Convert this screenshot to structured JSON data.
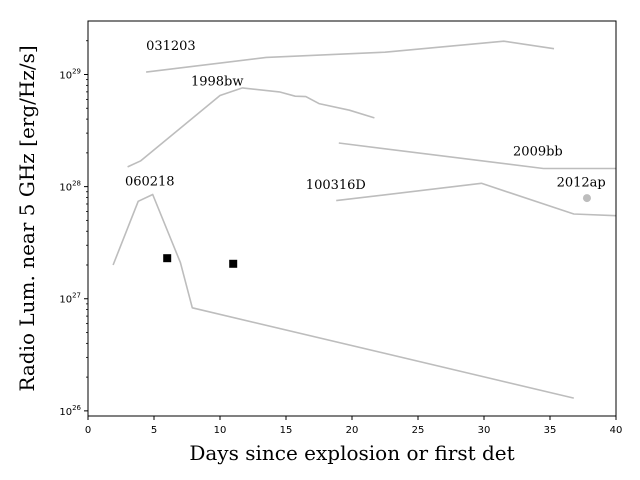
{
  "chart_data": {
    "type": "line",
    "xlabel": "Days since explosion or first det",
    "ylabel": "Radio Lum. near 5 GHz [erg/Hz/s]",
    "xlim": [
      0,
      40
    ],
    "ylim": [
      9e+25,
      3e+29
    ],
    "yscale": "log",
    "grid": false,
    "legend": "none",
    "x_ticks": [
      0,
      5,
      10,
      15,
      20,
      25,
      30,
      35,
      40
    ],
    "y_ticks": [
      {
        "value": 1e+26,
        "label": "10^26"
      },
      {
        "value": 1e+27,
        "label": "10^27"
      },
      {
        "value": 1e+28,
        "label": "10^28"
      },
      {
        "value": 1e+29,
        "label": "10^29"
      }
    ],
    "line_color": "#bdbdbd",
    "point_color": "#000000",
    "series": [
      {
        "name": "031203",
        "label_at": [
          4.4,
          1.65e+29
        ],
        "points": [
          [
            4.4,
            1.05e+29
          ],
          [
            13.5,
            1.42e+29
          ],
          [
            22.5,
            1.58e+29
          ],
          [
            31.5,
            1.98e+29
          ],
          [
            35.3,
            1.7e+29
          ]
        ]
      },
      {
        "name": "1998bw",
        "label_at": [
          7.8,
          8e+28
        ],
        "points": [
          [
            3.0,
            1.5e+28
          ],
          [
            4.0,
            1.7e+28
          ],
          [
            10.0,
            6.5e+28
          ],
          [
            11.7,
            7.6e+28
          ],
          [
            14.5,
            7e+28
          ],
          [
            15.7,
            6.4e+28
          ],
          [
            16.5,
            6.35e+28
          ],
          [
            17.5,
            5.5e+28
          ],
          [
            19.8,
            4.8e+28
          ],
          [
            21.7,
            4.1e+28
          ]
        ]
      },
      {
        "name": "2009bb",
        "label_at": [
          32.2,
          1.9e+28
        ],
        "points": [
          [
            19.0,
            2.45e+28
          ],
          [
            34.5,
            1.45e+28
          ],
          [
            40.0,
            1.45e+28
          ]
        ]
      },
      {
        "name": "060218",
        "label_at": [
          2.8,
          1.02e+28
        ],
        "points": [
          [
            1.9,
            2e+27
          ],
          [
            3.8,
            7.4e+27
          ],
          [
            4.9,
            8.5e+27
          ],
          [
            7.0,
            2.1e+27
          ],
          [
            7.9,
            8.3e+26
          ],
          [
            36.8,
            1.3e+26
          ]
        ]
      },
      {
        "name": "100316D",
        "label_at": [
          16.5,
          9.5e+27
        ],
        "points": [
          [
            18.8,
            7.5e+27
          ],
          [
            29.8,
            1.07e+28
          ],
          [
            36.8,
            5.7e+27
          ],
          [
            40.0,
            5.5e+27
          ]
        ]
      },
      {
        "name": "2012ap",
        "label_at": [
          35.5,
          1e+28
        ],
        "points": [
          [
            37.8,
            7.9e+27
          ]
        ],
        "marker": "circle"
      }
    ],
    "markers": [
      {
        "x": 6.0,
        "y": 2.3e+27,
        "shape": "square"
      },
      {
        "x": 11.0,
        "y": 2.05e+27,
        "shape": "square"
      }
    ]
  }
}
